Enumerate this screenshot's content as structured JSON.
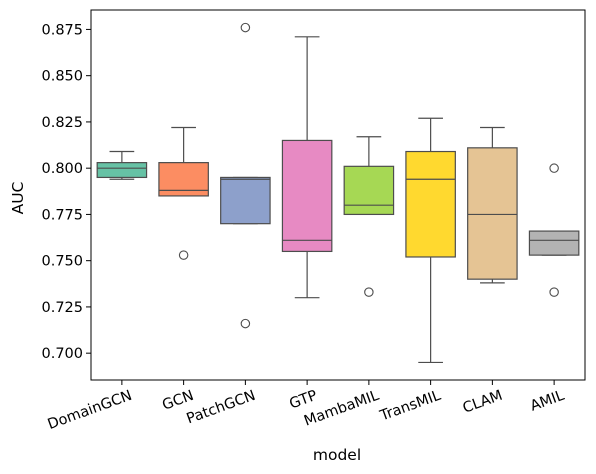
{
  "chart_data": {
    "type": "box",
    "xlabel": "model",
    "ylabel": "AUC",
    "ylim": [
      0.6855,
      0.8855
    ],
    "yticks": [
      0.7,
      0.725,
      0.75,
      0.775,
      0.8,
      0.825,
      0.85,
      0.875
    ],
    "ytick_labels": [
      "0.700",
      "0.725",
      "0.750",
      "0.775",
      "0.800",
      "0.825",
      "0.850",
      "0.875"
    ],
    "grid": false,
    "legend": "none",
    "categories": [
      "DomainGCN",
      "GCN",
      "PatchGCN",
      "GTP",
      "MambaMIL",
      "TransMIL",
      "CLAM",
      "AMIL"
    ],
    "boxes": [
      {
        "category": "DomainGCN",
        "color": "#66c2a5",
        "whisker_low": 0.794,
        "q1": 0.795,
        "median": 0.8,
        "q3": 0.803,
        "whisker_high": 0.809,
        "outliers": []
      },
      {
        "category": "GCN",
        "color": "#fc8d62",
        "whisker_low": 0.785,
        "q1": 0.785,
        "median": 0.788,
        "q3": 0.803,
        "whisker_high": 0.822,
        "outliers": [
          0.753
        ]
      },
      {
        "category": "PatchGCN",
        "color": "#8da0cb",
        "whisker_low": 0.77,
        "q1": 0.77,
        "median": 0.794,
        "q3": 0.795,
        "whisker_high": 0.795,
        "outliers": [
          0.876,
          0.716
        ]
      },
      {
        "category": "GTP",
        "color": "#e78ac3",
        "whisker_low": 0.73,
        "q1": 0.755,
        "median": 0.761,
        "q3": 0.815,
        "whisker_high": 0.871,
        "outliers": []
      },
      {
        "category": "MambaMIL",
        "color": "#a6d854",
        "whisker_low": 0.775,
        "q1": 0.775,
        "median": 0.78,
        "q3": 0.801,
        "whisker_high": 0.817,
        "outliers": [
          0.733
        ]
      },
      {
        "category": "TransMIL",
        "color": "#ffd92f",
        "whisker_low": 0.695,
        "q1": 0.752,
        "median": 0.794,
        "q3": 0.809,
        "whisker_high": 0.827,
        "outliers": []
      },
      {
        "category": "CLAM",
        "color": "#e5c494",
        "whisker_low": 0.738,
        "q1": 0.74,
        "median": 0.775,
        "q3": 0.811,
        "whisker_high": 0.822,
        "outliers": []
      },
      {
        "category": "AMIL",
        "color": "#b3b3b3",
        "whisker_low": 0.753,
        "q1": 0.753,
        "median": 0.761,
        "q3": 0.766,
        "whisker_high": 0.766,
        "outliers": [
          0.8,
          0.733
        ]
      }
    ]
  }
}
